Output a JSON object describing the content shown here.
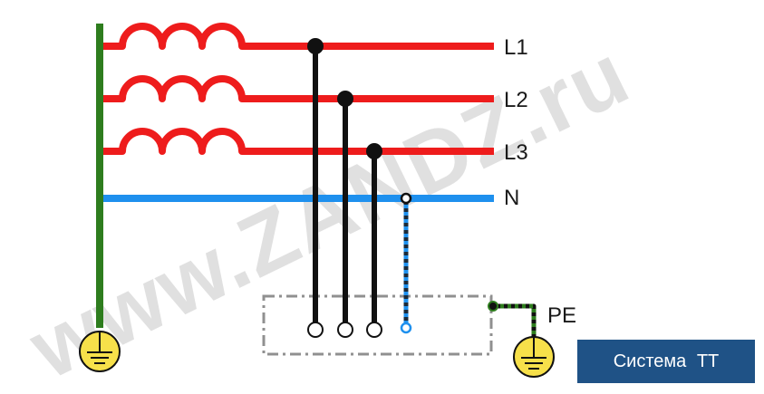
{
  "watermark": "www.ZANDZ.ru",
  "lines": {
    "l1": "L1",
    "l2": "L2",
    "l3": "L3",
    "n": "N",
    "pe": "PE"
  },
  "badge": "Система  ТТ",
  "colors": {
    "phase": "#ee1c1c",
    "neutral": "#1e90ee",
    "earth_bus": "#2e7d1e",
    "conductor": "#111111",
    "pe_stripe": "#2e7d1e",
    "ground_fill": "#f7e04a",
    "enclosure": "#909090",
    "badge_bg": "#1f5286"
  },
  "icons": [
    "coil-icon",
    "ground-icon",
    "terminal-icon",
    "junction-dot-icon"
  ]
}
